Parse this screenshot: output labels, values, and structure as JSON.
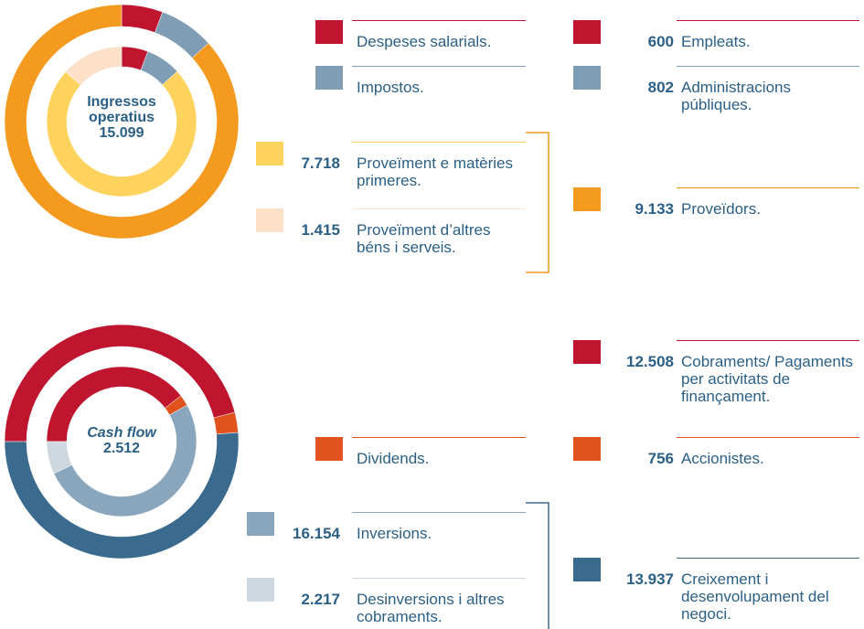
{
  "chart_data": [
    {
      "type": "donut",
      "title": "Ingressos operatius",
      "total": 15099,
      "total_label": "15.099",
      "outer": {
        "categories": [
          "Empleats.",
          "Administracions públiques.",
          "Proveïdors."
        ],
        "colors": [
          "#c0152f",
          "#7f9db5",
          "#f39a1f"
        ],
        "values": [
          600,
          802,
          9133
        ],
        "value_labels": [
          "600",
          "802",
          "9.133"
        ]
      },
      "inner": {
        "categories": [
          "Despeses salarials.",
          "Impostos.",
          "Proveïment e matèries primeres.",
          "Proveïment d’altres béns i serveis."
        ],
        "colors": [
          "#c0152f",
          "#7f9db5",
          "#fdd35e",
          "#fde0c8"
        ],
        "values": [
          600,
          802,
          7718,
          1415
        ],
        "value_labels": [
          null,
          null,
          "7.718",
          "1.415"
        ]
      }
    },
    {
      "type": "donut",
      "title": "Cash flow",
      "total": 2512,
      "total_label": "2.512",
      "outer": {
        "categories": [
          "Cobraments/ Pagaments per activitats de finançament.",
          "Accionistes.",
          "Creixement i desenvolupament del negoci."
        ],
        "colors": [
          "#c0152f",
          "#e0531f",
          "#3a6b8f"
        ],
        "values": [
          12508,
          756,
          13937
        ],
        "value_labels": [
          "12.508",
          "756",
          "13.937"
        ]
      },
      "inner": {
        "categories": [
          null,
          "Dividends.",
          "Inversions.",
          "Desinversions i altres cobraments."
        ],
        "colors": [
          "#c0152f",
          "#e0531f",
          "#8aa6bd",
          "#cdd7e0"
        ],
        "values": [
          12508,
          756,
          16154,
          2217
        ],
        "value_labels": [
          null,
          null,
          "16.154",
          "2.217"
        ]
      }
    }
  ]
}
